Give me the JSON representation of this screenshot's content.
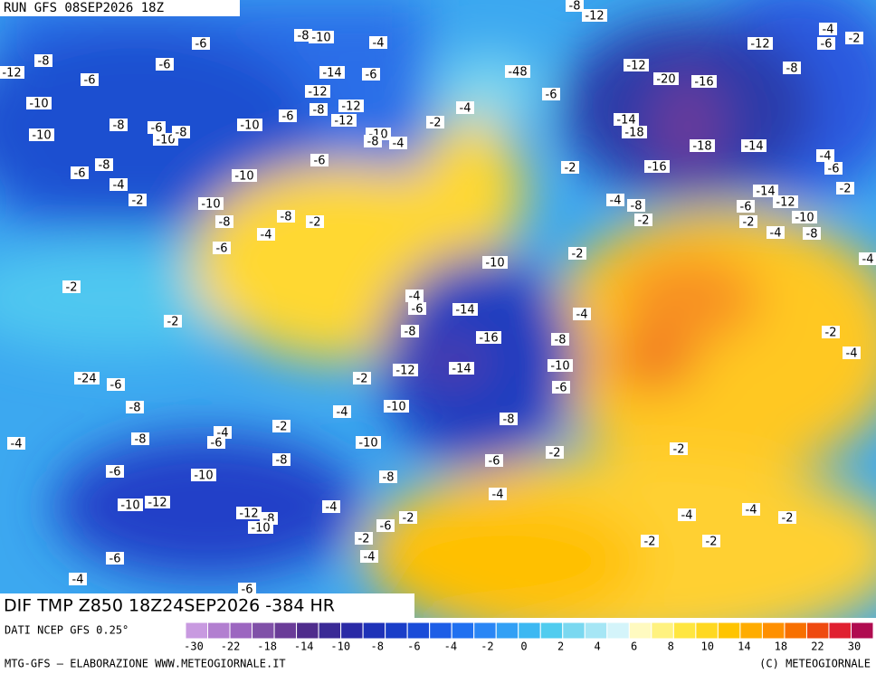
{
  "header": {
    "run": "RUN GFS 08SEP2026 18Z",
    "field": "DIF TMP Z850 18Z24SEP2026 -384 HR"
  },
  "map": {
    "contour_labels": [
      -12,
      -8,
      -6,
      -6,
      -6,
      -10,
      -10,
      -8,
      -6,
      -10,
      -8,
      -10,
      -6,
      -8,
      -10,
      -4,
      -14,
      -6,
      -12,
      -12,
      -8,
      -12,
      -10,
      -8,
      -4,
      -2,
      -4,
      -48,
      -6,
      -8,
      -12,
      -12,
      -20,
      -16,
      -14,
      -18,
      -18,
      -14,
      -16,
      -2,
      -6,
      -8,
      -4,
      -10,
      -6,
      -2,
      -10,
      -8,
      -8,
      -2,
      -4,
      -6,
      -4,
      -8,
      -2,
      -6,
      -14,
      -12,
      -10,
      -2,
      -4,
      -8,
      -4,
      -6,
      -2,
      -4,
      -2,
      -10,
      -4,
      -6,
      -14,
      -4,
      -8,
      -16,
      -8,
      -12,
      -14,
      -10,
      -6,
      -2,
      -10,
      -8,
      -2,
      -4,
      -2,
      -2,
      -24,
      -6,
      -8,
      -4,
      -6,
      -8,
      -4,
      -2,
      -4,
      -10,
      -8,
      -6,
      -10,
      -8,
      -6,
      -2,
      -2,
      -4,
      -10,
      -12,
      -12,
      -8,
      -10,
      -4,
      -6,
      -2,
      -2,
      -4,
      -6,
      -4,
      -6,
      -4,
      -4,
      -2,
      -2,
      -2,
      -6,
      -2,
      -8,
      -12,
      -4
    ]
  },
  "colorbar": {
    "colors": [
      "#c89ae0",
      "#b27fd0",
      "#9c66c0",
      "#8050a8",
      "#6a3c98",
      "#4f2c8c",
      "#3a2a96",
      "#2a2aa6",
      "#1e32b8",
      "#1a3ec8",
      "#1a4cd8",
      "#1e5ee6",
      "#2070f0",
      "#2a86f5",
      "#32a0f5",
      "#3cb8f2",
      "#50ccef",
      "#7ad8f0",
      "#a6e6f5",
      "#d4f4fa",
      "#fffac0",
      "#fff280",
      "#ffe640",
      "#ffd820",
      "#ffc400",
      "#ffac00",
      "#ff9000",
      "#f87000",
      "#ef4a10",
      "#e02030",
      "#b00c50"
    ],
    "ticks": [
      -30,
      -22,
      -18,
      -14,
      -10,
      -8,
      -6,
      -4,
      -2,
      0,
      2,
      4,
      6,
      8,
      10,
      14,
      18,
      22,
      30
    ]
  },
  "footer": {
    "source": "DATI NCEP GFS 0.25°",
    "credit": "MTG-GFS — ELABORAZIONE WWW.METEOGIORNALE.IT",
    "copyright": "(C) METEOGIORNALE"
  }
}
